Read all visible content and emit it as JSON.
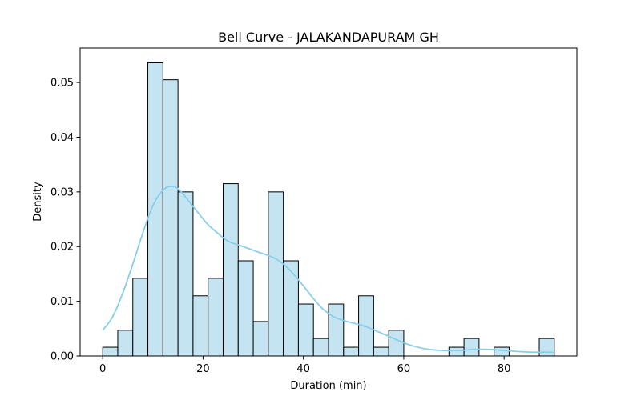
{
  "chart_data": {
    "type": "histogram",
    "title": "Bell Curve - JALAKANDAPURAM GH",
    "xlabel": "Duration (min)",
    "ylabel": "Density",
    "xlim": [
      -4.5,
      94.5
    ],
    "ylim": [
      0,
      0.0563
    ],
    "x_ticks": [
      0,
      20,
      40,
      60,
      80
    ],
    "y_ticks": [
      0.0,
      0.01,
      0.02,
      0.03,
      0.04,
      0.05
    ],
    "y_tick_labels": [
      "0.00",
      "0.01",
      "0.02",
      "0.03",
      "0.04",
      "0.05"
    ],
    "bin_edges": [
      0,
      3,
      6,
      9,
      12,
      15,
      18,
      21,
      24,
      27,
      30,
      33,
      36,
      39,
      42,
      45,
      48,
      51,
      54,
      57,
      60,
      63,
      66,
      69,
      72,
      75,
      78,
      81,
      84,
      87,
      90
    ],
    "densities": [
      0.0016,
      0.0047,
      0.0142,
      0.0536,
      0.0505,
      0.03,
      0.011,
      0.0142,
      0.0315,
      0.0174,
      0.0063,
      0.03,
      0.0174,
      0.0095,
      0.0032,
      0.0095,
      0.0016,
      0.011,
      0.0016,
      0.0047,
      0,
      0,
      0,
      0.0016,
      0.0032,
      0,
      0.0016,
      0,
      0,
      0.0032
    ],
    "bar_fill": "#c4e4f2",
    "bar_edge": "#000000",
    "kde": {
      "color": "#87ceeb",
      "x": [
        0,
        2,
        4,
        6,
        8,
        10,
        12,
        13.5,
        15,
        17,
        19,
        21,
        23,
        25,
        28,
        31,
        34,
        36,
        38,
        40,
        42,
        44,
        46,
        48,
        50,
        52,
        54,
        56,
        58,
        60,
        62,
        65,
        68,
        71,
        74,
        77,
        80,
        83,
        86,
        90
      ],
      "y": [
        0.0047,
        0.0072,
        0.0115,
        0.0168,
        0.0225,
        0.0275,
        0.0303,
        0.031,
        0.0306,
        0.0285,
        0.0262,
        0.024,
        0.0224,
        0.021,
        0.02,
        0.019,
        0.018,
        0.0168,
        0.015,
        0.0128,
        0.0105,
        0.0085,
        0.0072,
        0.0065,
        0.006,
        0.0055,
        0.0048,
        0.004,
        0.0032,
        0.0024,
        0.0018,
        0.0012,
        0.001,
        0.001,
        0.0012,
        0.0012,
        0.001,
        0.0008,
        0.0007,
        0.0007
      ]
    }
  }
}
